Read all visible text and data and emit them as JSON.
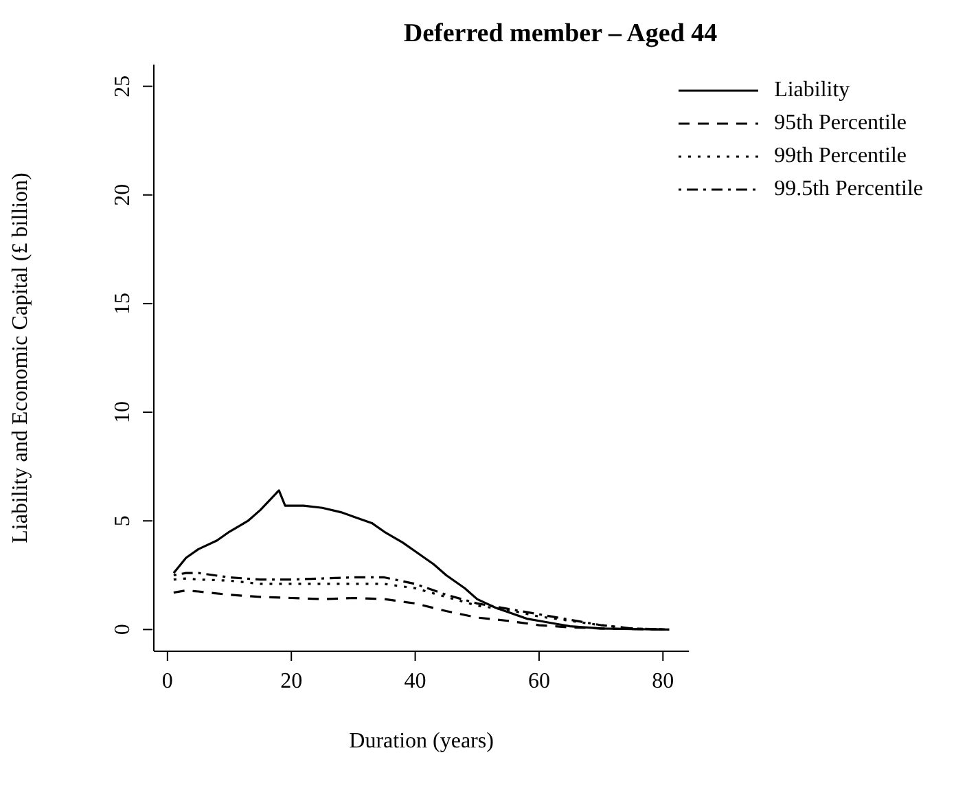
{
  "chart_data": {
    "type": "line",
    "title": "Deferred member – Aged 44",
    "xlabel": "Duration (years)",
    "ylabel": "Liability and Economic Capital (£ billion)",
    "xlim": [
      -2.2,
      84.2
    ],
    "xticks": [
      0,
      20,
      40,
      60,
      80
    ],
    "ylim": [
      -1,
      26
    ],
    "yticks": [
      0,
      5,
      10,
      15,
      20,
      25
    ],
    "grid": false,
    "legend": "top right",
    "marker": "none",
    "series": [
      {
        "name": "Liability",
        "color": "#000000",
        "line_style": "solid",
        "x": [
          1,
          3,
          5,
          8,
          10,
          13,
          15,
          18,
          19,
          22,
          25,
          28,
          30,
          33,
          35,
          38,
          40,
          43,
          45,
          48,
          50,
          53,
          55,
          58,
          60,
          63,
          65,
          70,
          75,
          81
        ],
        "values": [
          2.6,
          3.3,
          3.7,
          4.1,
          4.5,
          5.0,
          5.5,
          6.4,
          5.7,
          5.7,
          5.6,
          5.4,
          5.2,
          4.9,
          4.5,
          4.0,
          3.6,
          3.0,
          2.5,
          1.9,
          1.4,
          1.0,
          0.8,
          0.5,
          0.4,
          0.25,
          0.15,
          0.05,
          0.02,
          0
        ]
      },
      {
        "name": "95th Percentile",
        "color": "#000000",
        "line_style": "dashed",
        "x": [
          1,
          3,
          5,
          10,
          15,
          20,
          25,
          30,
          35,
          40,
          45,
          50,
          55,
          60,
          65,
          70,
          75,
          81
        ],
        "values": [
          1.7,
          1.8,
          1.75,
          1.6,
          1.5,
          1.45,
          1.4,
          1.45,
          1.4,
          1.2,
          0.85,
          0.55,
          0.4,
          0.2,
          0.1,
          0.05,
          0.02,
          0
        ]
      },
      {
        "name": "99th Percentile",
        "color": "#000000",
        "line_style": "dotted",
        "x": [
          1,
          3,
          5,
          10,
          15,
          20,
          25,
          30,
          35,
          40,
          45,
          50,
          55,
          60,
          65,
          70,
          75,
          81
        ],
        "values": [
          2.3,
          2.35,
          2.3,
          2.25,
          2.1,
          2.1,
          2.1,
          2.1,
          2.1,
          1.9,
          1.5,
          1.1,
          0.9,
          0.6,
          0.4,
          0.2,
          0.05,
          0
        ]
      },
      {
        "name": "99.5th Percentile",
        "color": "#000000",
        "line_style": "dashdot",
        "x": [
          1,
          3,
          5,
          10,
          15,
          20,
          25,
          30,
          35,
          40,
          45,
          50,
          55,
          60,
          65,
          70,
          75,
          81
        ],
        "values": [
          2.5,
          2.6,
          2.6,
          2.4,
          2.3,
          2.3,
          2.35,
          2.4,
          2.4,
          2.1,
          1.6,
          1.2,
          0.95,
          0.7,
          0.45,
          0.2,
          0.05,
          0
        ]
      }
    ]
  }
}
